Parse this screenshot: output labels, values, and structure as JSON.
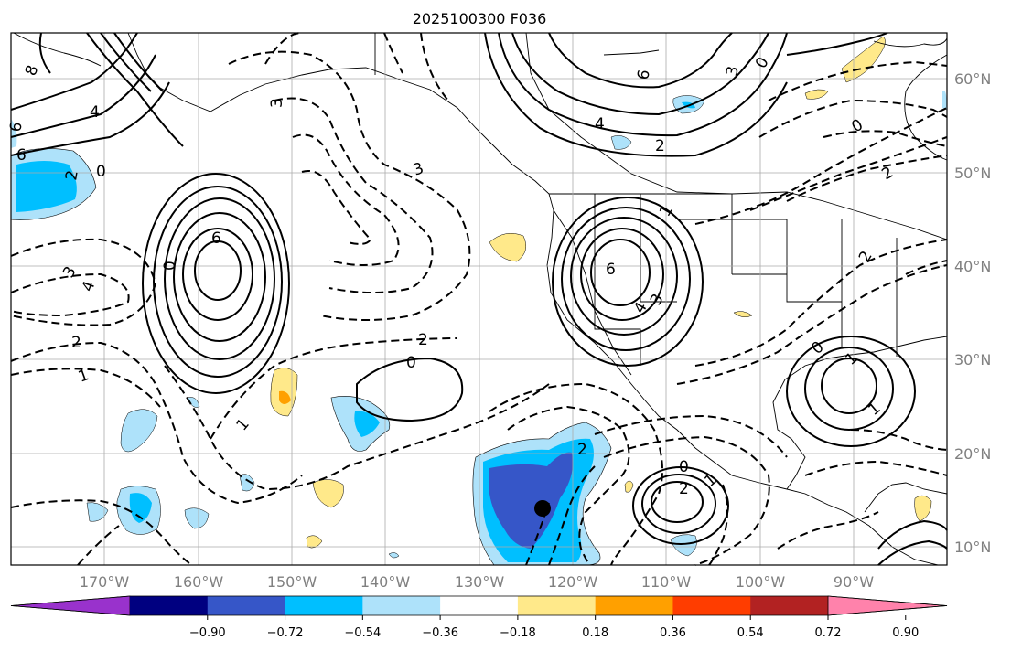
{
  "title": "2025100300 F036",
  "lat_labels": [
    "60°N",
    "50°N",
    "40°N",
    "30°N",
    "20°N",
    "10°N"
  ],
  "lon_labels": [
    "170°W",
    "160°W",
    "150°W",
    "140°W",
    "130°W",
    "120°W",
    "110°W",
    "100°W",
    "90°W"
  ],
  "colorbar": {
    "colors": [
      "#9932cc",
      "#000080",
      "#3656c8",
      "#00bfff",
      "#aee2fa",
      "#ffffff",
      "#ffe98a",
      "#ffa000",
      "#ff3d00",
      "#b22222",
      "#ff82ab"
    ],
    "tick_labels": [
      "−0.90",
      "−0.72",
      "−0.54",
      "−0.36",
      "−0.18",
      "0.18",
      "0.36",
      "0.54",
      "0.72",
      "0.90"
    ]
  },
  "contour_labels": [
    "8",
    "6",
    "4",
    "6",
    "2",
    "0",
    "4",
    "2",
    "3",
    "6",
    "3",
    "0",
    "3",
    "2",
    "0",
    "1",
    "6",
    "6",
    "3",
    "4",
    "4",
    "3",
    "2",
    "1",
    "0",
    "1",
    "2",
    "0",
    "2",
    "1",
    "0",
    "2",
    "1",
    "0",
    "1",
    "2"
  ],
  "marker": {
    "name": "tropical cyclone center"
  }
}
